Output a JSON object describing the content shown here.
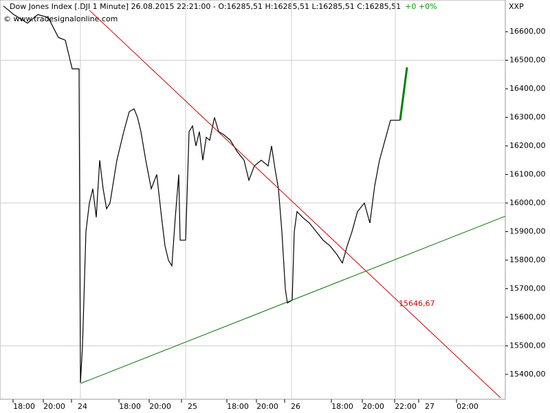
{
  "chart_data": {
    "type": "line",
    "title": "Dow Jones Index [.DJI  1 Minute] 26.08.2015 22:21:00 - O:16285,51 H:16285,51 L:16285,51 C:16285,51",
    "change": "+0 +0%",
    "subtitle": "© www.tradesignalonline.com",
    "axis_label": "XXP",
    "annotation": {
      "text": "15646,67",
      "x": 580,
      "y": 15646.67,
      "color": "#cc0000"
    },
    "xlim": [
      0,
      735
    ],
    "ylim": [
      15313,
      16711
    ],
    "xticks": [
      {
        "value": 35,
        "label": "18:00"
      },
      {
        "value": 79,
        "label": "20:00"
      },
      {
        "value": 120,
        "label": "24"
      },
      {
        "value": 189,
        "label": "18:00"
      },
      {
        "value": 233,
        "label": "20:00"
      },
      {
        "value": 280,
        "label": "25"
      },
      {
        "value": 346,
        "label": "18:00"
      },
      {
        "value": 389,
        "label": "20:00"
      },
      {
        "value": 430,
        "label": "26"
      },
      {
        "value": 498,
        "label": "18:00"
      },
      {
        "value": 543,
        "label": "20:00"
      },
      {
        "value": 590,
        "label": "22:00"
      },
      {
        "value": 625,
        "label": "27"
      },
      {
        "value": 680,
        "label": "02:00"
      }
    ],
    "xgrid": [
      117,
      270,
      424,
      575
    ],
    "ygrid": [
      16500,
      16000,
      15500
    ],
    "yticks": [
      {
        "value": 15400,
        "label": "15400,00"
      },
      {
        "value": 15500,
        "label": "15500,00"
      },
      {
        "value": 15600,
        "label": "15600,00"
      },
      {
        "value": 15700,
        "label": "15700,00"
      },
      {
        "value": 15800,
        "label": "15800,00"
      },
      {
        "value": 15900,
        "label": "15900,00"
      },
      {
        "value": 16000,
        "label": "16000,00"
      },
      {
        "value": 16100,
        "label": "16100,00"
      },
      {
        "value": 16200,
        "label": "16200,00"
      },
      {
        "value": 16300,
        "label": "16300,00"
      },
      {
        "value": 16400,
        "label": "16400,00"
      },
      {
        "value": 16500,
        "label": "16500,00"
      },
      {
        "value": 16600,
        "label": "16600,00"
      }
    ],
    "series": [
      {
        "color": "#000000",
        "width": 1.2,
        "x": [
          5,
          20,
          40,
          55,
          70,
          85,
          95,
          105,
          115,
          117,
          120,
          125,
          130,
          135,
          140,
          145,
          150,
          155,
          160,
          170,
          180,
          188,
          195,
          200,
          205,
          212,
          220,
          228,
          235,
          240,
          245,
          250,
          255,
          260,
          262,
          270,
          275,
          280,
          285,
          290,
          295,
          300,
          305,
          312,
          318,
          325,
          335,
          345,
          355,
          362,
          370,
          380,
          390,
          395,
          400,
          405,
          410,
          415,
          418,
          425,
          428,
          432,
          440,
          450,
          460,
          470,
          480,
          490,
          498,
          505,
          512,
          520,
          530,
          538,
          545,
          552,
          560,
          568,
          575,
          582
        ],
        "values": [
          16690,
          16660,
          16630,
          16660,
          16650,
          16580,
          16570,
          16470,
          16470,
          15370,
          15500,
          15900,
          16000,
          16050,
          15950,
          16150,
          16050,
          15980,
          16000,
          16150,
          16250,
          16320,
          16330,
          16300,
          16250,
          16150,
          16050,
          16100,
          15950,
          15850,
          15800,
          15780,
          15950,
          16100,
          15870,
          15870,
          16250,
          16270,
          16200,
          16250,
          16150,
          16230,
          16220,
          16300,
          16250,
          16240,
          16220,
          16180,
          16150,
          16080,
          16130,
          16150,
          16130,
          16200,
          16120,
          16050,
          15900,
          15700,
          15650,
          15660,
          15900,
          15970,
          15950,
          15930,
          15900,
          15870,
          15850,
          15820,
          15790,
          15850,
          15900,
          15970,
          16000,
          15930,
          16060,
          16150,
          16220,
          16290,
          16290,
          16290
        ]
      },
      {
        "color": "#008000",
        "width": 3,
        "x": [
          582,
          592
        ],
        "values": [
          16290,
          16475
        ]
      },
      {
        "color": "#cc0000",
        "width": 1,
        "x": [
          130,
          728
        ],
        "values": [
          16675,
          15318
        ]
      },
      {
        "color": "#007000",
        "width": 1,
        "x": [
          118,
          735
        ],
        "values": [
          15369,
          15954
        ]
      }
    ]
  }
}
